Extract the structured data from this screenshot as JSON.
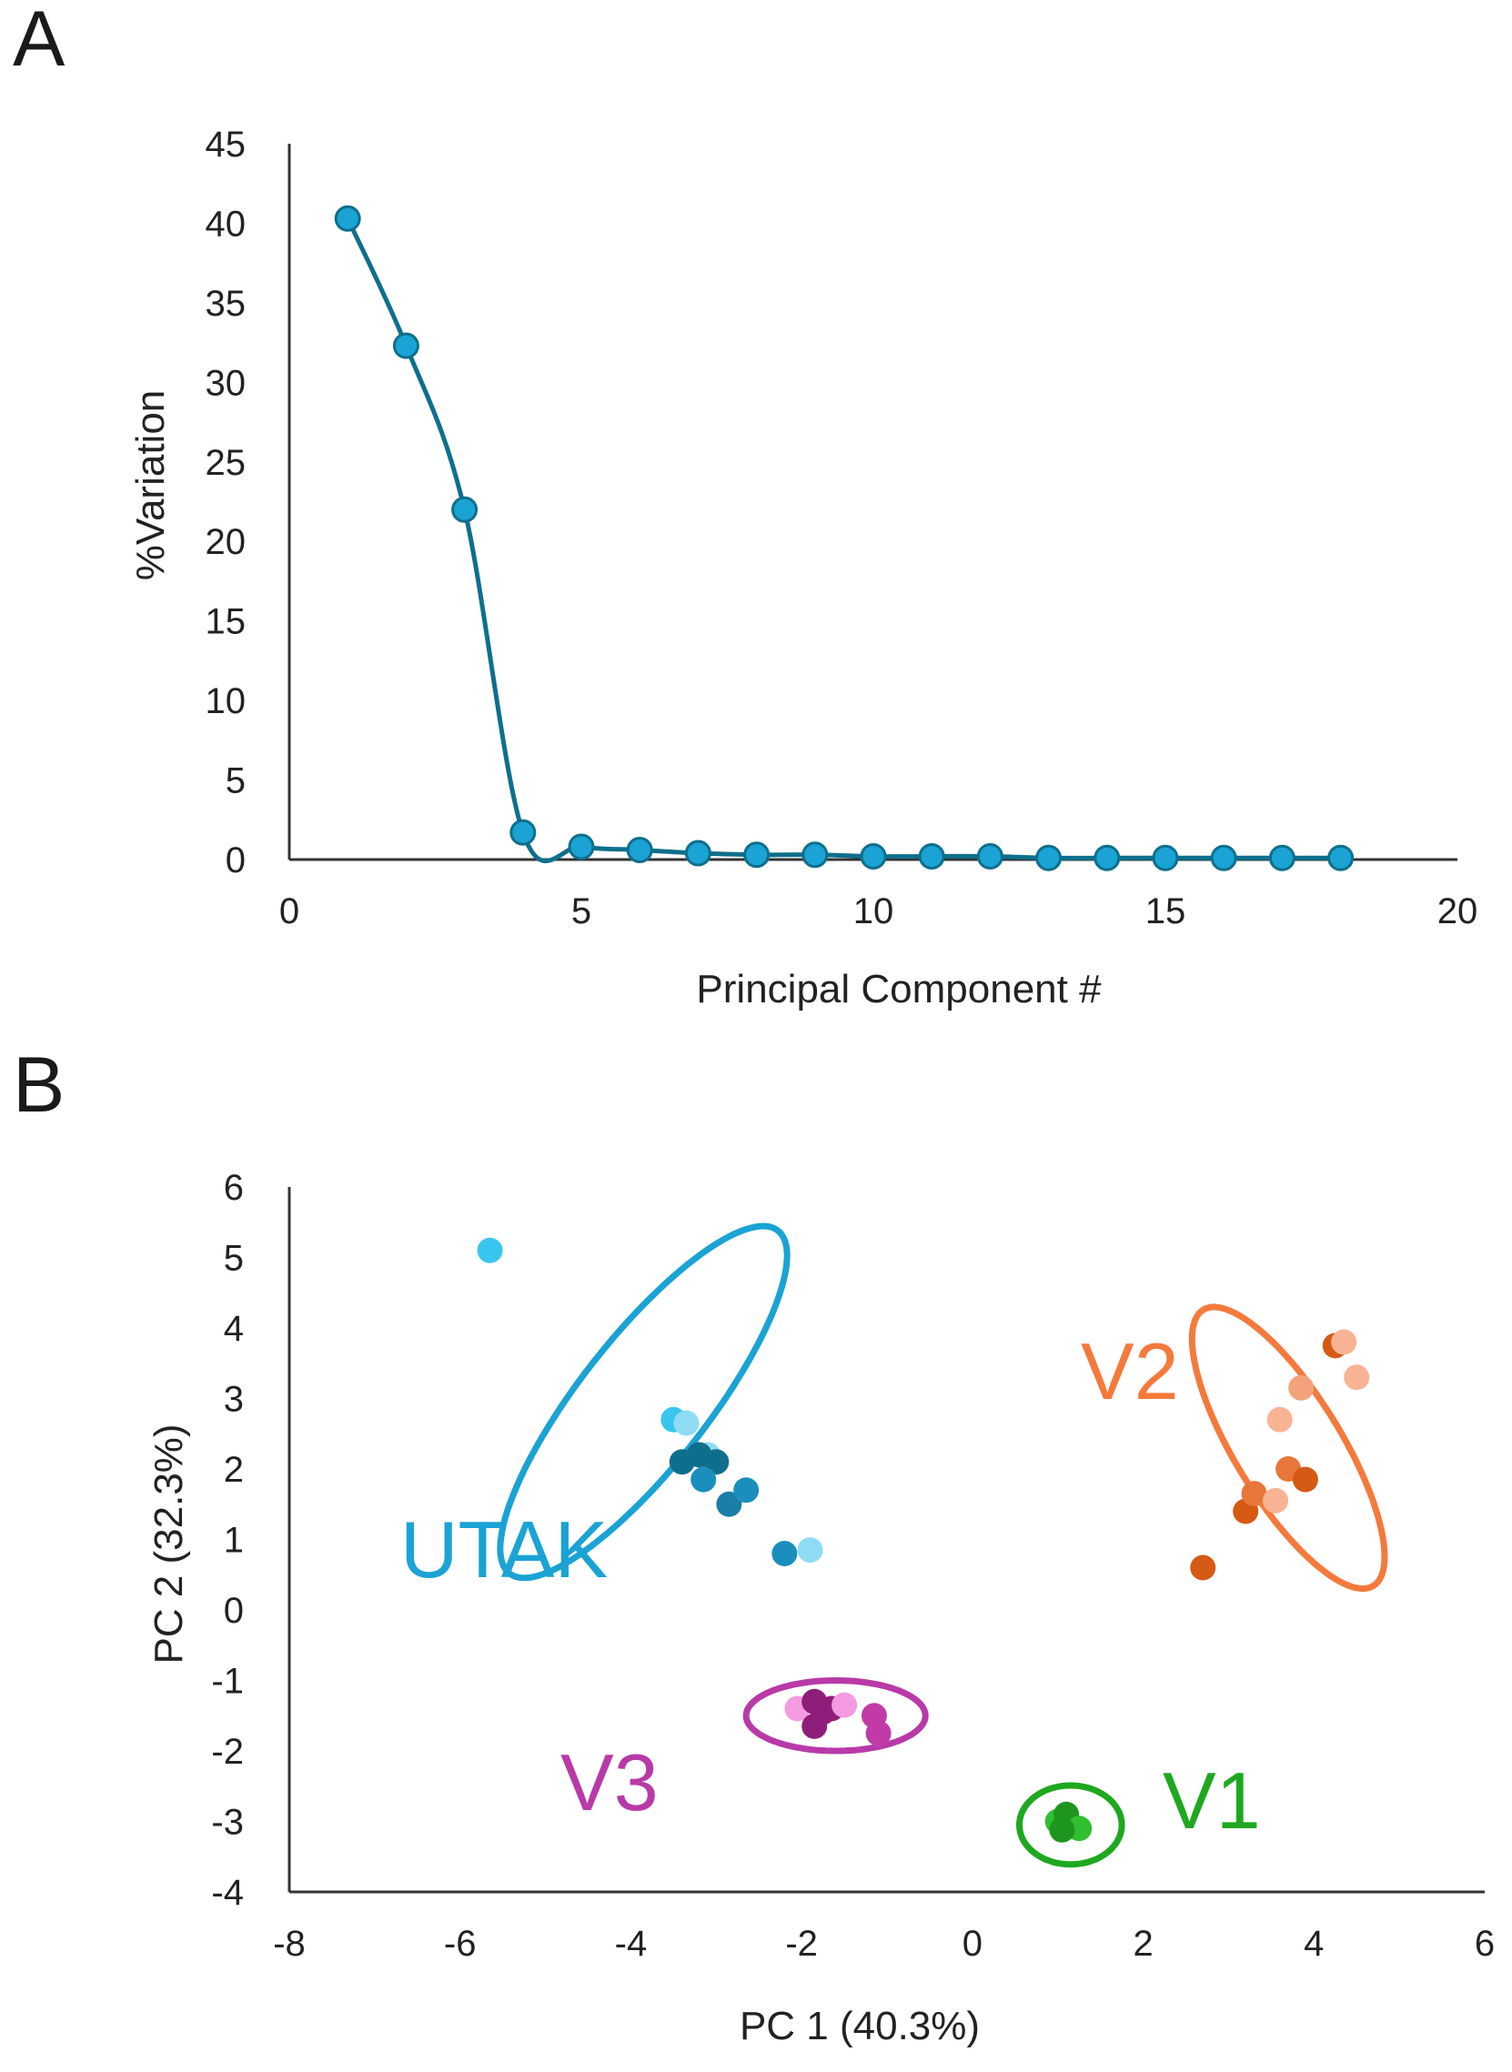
{
  "chart_data": [
    {
      "panel": "A",
      "type": "line",
      "xlabel": "Principal Component #",
      "ylabel": "%Variation",
      "xlim": [
        0,
        20
      ],
      "ylim": [
        0,
        45
      ],
      "xticks": [
        "0",
        "5",
        "10",
        "15",
        "20"
      ],
      "yticks": [
        "0",
        "5",
        "10",
        "15",
        "20",
        "25",
        "30",
        "35",
        "40",
        "45"
      ],
      "series": [
        {
          "name": "%Variation",
          "color": "#1aa3d4",
          "line_color": "#0e6f8c",
          "x": [
            1,
            2,
            3,
            4,
            5,
            6,
            7,
            8,
            9,
            10,
            11,
            12,
            13,
            14,
            15,
            16,
            17,
            18
          ],
          "y": [
            40.3,
            32.3,
            22.0,
            1.7,
            0.8,
            0.6,
            0.4,
            0.3,
            0.3,
            0.2,
            0.2,
            0.2,
            0.1,
            0.1,
            0.1,
            0.1,
            0.1,
            0.1
          ]
        }
      ]
    },
    {
      "panel": "B",
      "type": "scatter",
      "xlabel": "PC 1 (40.3%)",
      "ylabel": "PC 2 (32.3%)",
      "xlim": [
        -8,
        6
      ],
      "ylim": [
        -4,
        6
      ],
      "xticks": [
        "-8",
        "-6",
        "-4",
        "-2",
        "0",
        "2",
        "4",
        "6"
      ],
      "yticks": [
        "-4",
        "-3",
        "-2",
        "-1",
        "0",
        "1",
        "2",
        "3",
        "4",
        "5",
        "6"
      ],
      "groups": [
        {
          "name": "UTAK",
          "color": "#1aa3d4",
          "ellipse": {
            "cx": -3.85,
            "cy": 2.95,
            "rx": 2.9,
            "ry": 0.8,
            "angle_deg": 58
          },
          "points": [
            {
              "x": -5.65,
              "y": 5.1,
              "color": "#38c6ee"
            },
            {
              "x": -3.5,
              "y": 2.7,
              "color": "#38c6ee"
            },
            {
              "x": -3.35,
              "y": 2.65,
              "color": "#8ddcf4"
            },
            {
              "x": -3.1,
              "y": 2.2,
              "color": "#8ddcf4"
            },
            {
              "x": -3.4,
              "y": 2.1,
              "color": "#0e6f8c"
            },
            {
              "x": -3.2,
              "y": 2.2,
              "color": "#0e6f8c"
            },
            {
              "x": -3.0,
              "y": 2.1,
              "color": "#0e6f8c"
            },
            {
              "x": -3.15,
              "y": 1.85,
              "color": "#1a8fbd"
            },
            {
              "x": -2.85,
              "y": 1.5,
              "color": "#1a7fa8"
            },
            {
              "x": -2.65,
              "y": 1.7,
              "color": "#1a8fbd"
            },
            {
              "x": -2.2,
              "y": 0.8,
              "color": "#1a8fbd"
            },
            {
              "x": -1.9,
              "y": 0.85,
              "color": "#8ddcf4"
            }
          ]
        },
        {
          "name": "V2",
          "color": "#f47a3c",
          "ellipse": {
            "cx": 3.7,
            "cy": 2.3,
            "rx": 2.2,
            "ry": 0.65,
            "angle_deg": -64
          },
          "points": [
            {
              "x": 2.7,
              "y": 0.6,
              "color": "#d55a14"
            },
            {
              "x": 3.2,
              "y": 1.4,
              "color": "#d55a14"
            },
            {
              "x": 3.3,
              "y": 1.65,
              "color": "#e8763a"
            },
            {
              "x": 3.55,
              "y": 1.55,
              "color": "#f8b394"
            },
            {
              "x": 3.7,
              "y": 2.0,
              "color": "#e8763a"
            },
            {
              "x": 3.9,
              "y": 1.85,
              "color": "#d55a14"
            },
            {
              "x": 3.6,
              "y": 2.7,
              "color": "#f8b394"
            },
            {
              "x": 3.85,
              "y": 3.15,
              "color": "#f4a27c"
            },
            {
              "x": 4.25,
              "y": 3.75,
              "color": "#d55a14"
            },
            {
              "x": 4.35,
              "y": 3.8,
              "color": "#f8b394"
            },
            {
              "x": 4.5,
              "y": 3.3,
              "color": "#f8b394"
            }
          ]
        },
        {
          "name": "V3",
          "color": "#b83aa8",
          "ellipse": {
            "cx": -1.6,
            "cy": -1.5,
            "rx": 1.05,
            "ry": 0.5,
            "angle_deg": 0
          },
          "points": [
            {
              "x": -2.05,
              "y": -1.4,
              "color": "#f49ae0"
            },
            {
              "x": -1.85,
              "y": -1.3,
              "color": "#8e1e7a"
            },
            {
              "x": -1.75,
              "y": -1.45,
              "color": "#8e1e7a"
            },
            {
              "x": -1.65,
              "y": -1.4,
              "color": "#8e1e7a"
            },
            {
              "x": -1.5,
              "y": -1.35,
              "color": "#f49ae0"
            },
            {
              "x": -1.85,
              "y": -1.65,
              "color": "#8e1e7a"
            },
            {
              "x": -1.15,
              "y": -1.5,
              "color": "#c23aa8"
            },
            {
              "x": -1.1,
              "y": -1.75,
              "color": "#c23aa8"
            }
          ]
        },
        {
          "name": "V1",
          "color": "#1fa81f",
          "ellipse": {
            "cx": 1.15,
            "cy": -3.05,
            "rx": 0.6,
            "ry": 0.56,
            "angle_deg": 0
          },
          "points": [
            {
              "x": 1.0,
              "y": -3.0,
              "color": "#2fbf2f"
            },
            {
              "x": 1.1,
              "y": -2.9,
              "color": "#1e961e"
            },
            {
              "x": 1.15,
              "y": -3.05,
              "color": "#1e961e"
            },
            {
              "x": 1.25,
              "y": -3.1,
              "color": "#2fbf2f"
            },
            {
              "x": 1.05,
              "y": -3.12,
              "color": "#1e961e"
            }
          ]
        }
      ]
    }
  ],
  "panels": {
    "a": "A",
    "b": "B"
  }
}
